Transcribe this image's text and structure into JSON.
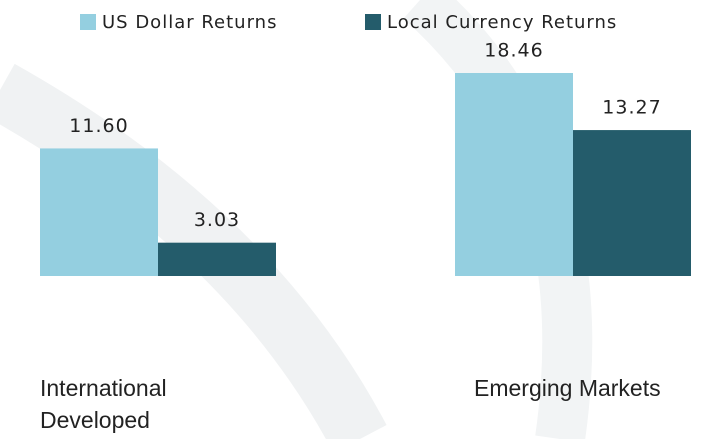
{
  "chart_data": {
    "type": "bar",
    "categories": [
      "International Developed",
      "Emerging Markets"
    ],
    "series": [
      {
        "name": "US Dollar Returns",
        "color": "#94cfe0",
        "values": [
          11.6,
          18.46
        ],
        "value_labels": [
          "11.60",
          "18.46"
        ]
      },
      {
        "name": "Local Currency Returns",
        "color": "#245c6b",
        "values": [
          3.03,
          13.27
        ],
        "value_labels": [
          "3.03",
          "13.27"
        ]
      }
    ],
    "legend": "top"
  }
}
